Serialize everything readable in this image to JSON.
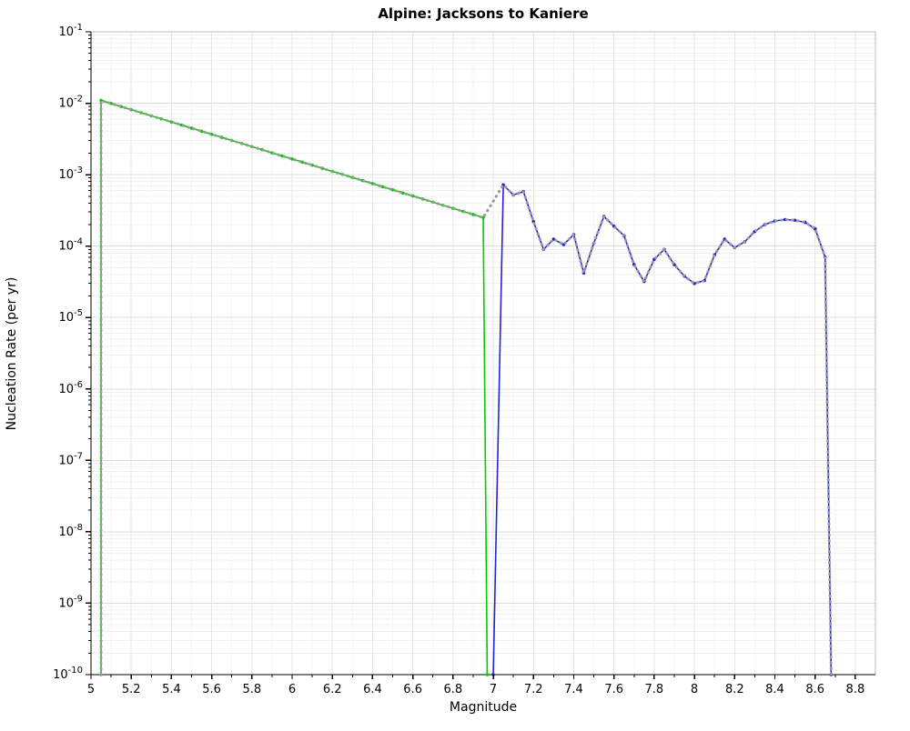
{
  "chart_data": {
    "type": "line",
    "title": "Alpine: Jacksons to Kaniere",
    "xlabel": "Magnitude",
    "ylabel": "Nucleation Rate (per yr)",
    "xlim": [
      5.0,
      8.9
    ],
    "ylim_log10": [
      -10,
      -1
    ],
    "grid": true,
    "legend": "none",
    "background": "#ffffff",
    "x_ticks": [
      5,
      5.2,
      5.4,
      5.6,
      5.8,
      6,
      6.2,
      6.4,
      6.6,
      6.8,
      7,
      7.2,
      7.4,
      7.6,
      7.8,
      8,
      8.2,
      8.4,
      8.6,
      8.8
    ],
    "x_tick_labels": [
      "5",
      "5.2",
      "5.4",
      "5.6",
      "5.8",
      "6",
      "6.2",
      "6.4",
      "6.6",
      "6.8",
      "7",
      "7.2",
      "7.4",
      "7.6",
      "7.8",
      "8",
      "8.2",
      "8.4",
      "8.6",
      "8.8"
    ],
    "y_tick_exponents": [
      -1,
      -2,
      -3,
      -4,
      -5,
      -6,
      -7,
      -8,
      -9,
      -10
    ],
    "series": [
      {
        "name": "green-series",
        "color": "#00cc00",
        "line_width": 1.6,
        "markers": true,
        "dotted": false,
        "points": [
          [
            5.05,
            1e-10
          ],
          [
            5.05,
            0.01096
          ],
          [
            5.1,
            0.00993
          ],
          [
            5.15,
            0.00899
          ],
          [
            5.2,
            0.00814
          ],
          [
            5.25,
            0.00737
          ],
          [
            5.3,
            0.00667
          ],
          [
            5.35,
            0.00604
          ],
          [
            5.4,
            0.00547
          ],
          [
            5.45,
            0.00495
          ],
          [
            5.5,
            0.00448
          ],
          [
            5.55,
            0.00406
          ],
          [
            5.6,
            0.00367
          ],
          [
            5.65,
            0.00333
          ],
          [
            5.7,
            0.00301
          ],
          [
            5.75,
            0.00273
          ],
          [
            5.8,
            0.00247
          ],
          [
            5.85,
            0.00224
          ],
          [
            5.9,
            0.00202
          ],
          [
            5.95,
            0.00183
          ],
          [
            6.0,
            0.00166
          ],
          [
            6.05,
            0.0015
          ],
          [
            6.1,
            0.00136
          ],
          [
            6.15,
            0.00123
          ],
          [
            6.2,
            0.00111
          ],
          [
            6.25,
            0.00101
          ],
          [
            6.3,
            0.000914
          ],
          [
            6.35,
            0.000828
          ],
          [
            6.4,
            0.00075
          ],
          [
            6.45,
            0.000678
          ],
          [
            6.5,
            0.000614
          ],
          [
            6.55,
            0.000556
          ],
          [
            6.6,
            0.000503
          ],
          [
            6.65,
            0.000456
          ],
          [
            6.7,
            0.000413
          ],
          [
            6.75,
            0.000373
          ],
          [
            6.8,
            0.000338
          ],
          [
            6.85,
            0.000306
          ],
          [
            6.9,
            0.000277
          ],
          [
            6.95,
            0.000251
          ],
          [
            6.97,
            1e-10
          ]
        ]
      },
      {
        "name": "blue-series",
        "color": "#2222dd",
        "line_width": 1.6,
        "markers": true,
        "dotted": false,
        "points": [
          [
            7.0,
            1e-10
          ],
          [
            7.05,
            0.00072
          ],
          [
            7.1,
            0.00052
          ],
          [
            7.15,
            0.00058
          ],
          [
            7.2,
            0.00022
          ],
          [
            7.25,
            9e-05
          ],
          [
            7.3,
            0.000125
          ],
          [
            7.35,
            0.000105
          ],
          [
            7.4,
            0.000145
          ],
          [
            7.45,
            4.2e-05
          ],
          [
            7.5,
            0.00011
          ],
          [
            7.55,
            0.00026
          ],
          [
            7.6,
            0.00019
          ],
          [
            7.65,
            0.00014
          ],
          [
            7.7,
            5.5e-05
          ],
          [
            7.75,
            3.2e-05
          ],
          [
            7.8,
            6.5e-05
          ],
          [
            7.85,
            9e-05
          ],
          [
            7.9,
            5.5e-05
          ],
          [
            7.95,
            3.8e-05
          ],
          [
            8.0,
            3e-05
          ],
          [
            8.05,
            3.3e-05
          ],
          [
            8.1,
            7.5e-05
          ],
          [
            8.15,
            0.000125
          ],
          [
            8.2,
            9.5e-05
          ],
          [
            8.25,
            0.000115
          ],
          [
            8.3,
            0.00016
          ],
          [
            8.35,
            0.0002
          ],
          [
            8.4,
            0.000225
          ],
          [
            8.45,
            0.000235
          ],
          [
            8.5,
            0.00023
          ],
          [
            8.55,
            0.000215
          ],
          [
            8.6,
            0.000175
          ],
          [
            8.65,
            7e-05
          ],
          [
            8.68,
            1e-10
          ]
        ]
      },
      {
        "name": "gray-dotted-series",
        "color": "#999999",
        "line_width": 3,
        "markers": false,
        "dotted": true,
        "points": [
          [
            5.05,
            1e-10
          ],
          [
            5.05,
            0.01096
          ],
          [
            5.1,
            0.00993
          ],
          [
            5.15,
            0.00899
          ],
          [
            5.2,
            0.00814
          ],
          [
            5.25,
            0.00737
          ],
          [
            5.3,
            0.00667
          ],
          [
            5.35,
            0.00604
          ],
          [
            5.4,
            0.00547
          ],
          [
            5.45,
            0.00495
          ],
          [
            5.5,
            0.00448
          ],
          [
            5.55,
            0.00406
          ],
          [
            5.6,
            0.00367
          ],
          [
            5.65,
            0.00333
          ],
          [
            5.7,
            0.00301
          ],
          [
            5.75,
            0.00273
          ],
          [
            5.8,
            0.00247
          ],
          [
            5.85,
            0.00224
          ],
          [
            5.9,
            0.00202
          ],
          [
            5.95,
            0.00183
          ],
          [
            6.0,
            0.00166
          ],
          [
            6.05,
            0.0015
          ],
          [
            6.1,
            0.00136
          ],
          [
            6.15,
            0.00123
          ],
          [
            6.2,
            0.00111
          ],
          [
            6.25,
            0.00101
          ],
          [
            6.3,
            0.000914
          ],
          [
            6.35,
            0.000828
          ],
          [
            6.4,
            0.00075
          ],
          [
            6.45,
            0.000678
          ],
          [
            6.5,
            0.000614
          ],
          [
            6.55,
            0.000556
          ],
          [
            6.6,
            0.000503
          ],
          [
            6.65,
            0.000456
          ],
          [
            6.7,
            0.000413
          ],
          [
            6.75,
            0.000373
          ],
          [
            6.8,
            0.000338
          ],
          [
            6.85,
            0.000306
          ],
          [
            6.9,
            0.000277
          ],
          [
            6.95,
            0.000251
          ],
          [
            7.05,
            0.00072
          ],
          [
            7.1,
            0.00052
          ],
          [
            7.15,
            0.00058
          ],
          [
            7.2,
            0.00022
          ],
          [
            7.25,
            9e-05
          ],
          [
            7.3,
            0.000125
          ],
          [
            7.35,
            0.000105
          ],
          [
            7.4,
            0.000145
          ],
          [
            7.45,
            4.2e-05
          ],
          [
            7.5,
            0.00011
          ],
          [
            7.55,
            0.00026
          ],
          [
            7.6,
            0.00019
          ],
          [
            7.65,
            0.00014
          ],
          [
            7.7,
            5.5e-05
          ],
          [
            7.75,
            3.2e-05
          ],
          [
            7.8,
            6.5e-05
          ],
          [
            7.85,
            9e-05
          ],
          [
            7.9,
            5.5e-05
          ],
          [
            7.95,
            3.8e-05
          ],
          [
            8.0,
            3e-05
          ],
          [
            8.05,
            3.3e-05
          ],
          [
            8.1,
            7.5e-05
          ],
          [
            8.15,
            0.000125
          ],
          [
            8.2,
            9.5e-05
          ],
          [
            8.25,
            0.000115
          ],
          [
            8.3,
            0.00016
          ],
          [
            8.35,
            0.0002
          ],
          [
            8.4,
            0.000225
          ],
          [
            8.45,
            0.000235
          ],
          [
            8.5,
            0.00023
          ],
          [
            8.55,
            0.000215
          ],
          [
            8.6,
            0.000175
          ],
          [
            8.65,
            7e-05
          ],
          [
            8.68,
            1e-10
          ]
        ]
      }
    ]
  }
}
